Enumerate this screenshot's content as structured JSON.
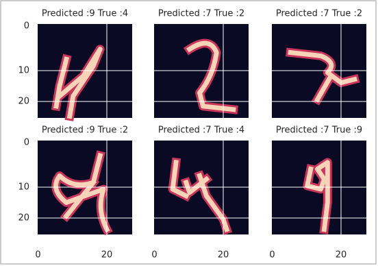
{
  "panels": [
    {
      "title": "Predicted :9 True :4"
    },
    {
      "title": "Predicted :7 True :2"
    },
    {
      "title": "Predicted :7 True :2"
    },
    {
      "title": "Predicted :9 True :2"
    },
    {
      "title": "Predicted :7 True :4"
    },
    {
      "title": "Predicted :7 True :9"
    }
  ],
  "yticks": [
    "0",
    "10",
    "20"
  ],
  "xticks": [
    "0",
    "20"
  ]
}
